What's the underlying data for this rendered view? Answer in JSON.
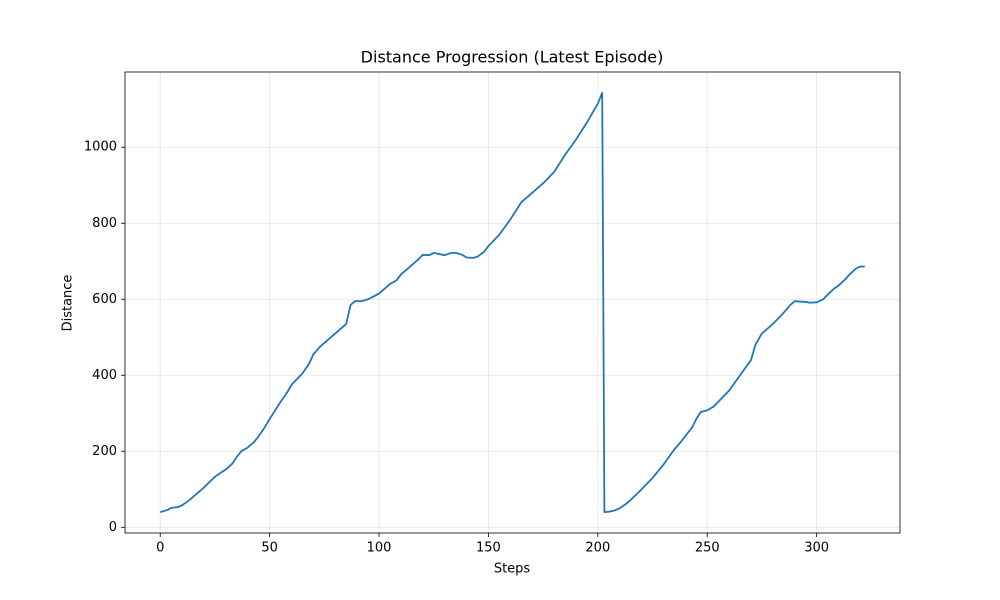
{
  "chart_data": {
    "type": "line",
    "title": "Distance Progression (Latest Episode)",
    "x_label": "Steps",
    "y_label": "Distance",
    "x": [
      0,
      3,
      5,
      8,
      10,
      13,
      15,
      20,
      25,
      28,
      30,
      33,
      35,
      37,
      40,
      43,
      45,
      48,
      50,
      55,
      58,
      60,
      65,
      68,
      70,
      73,
      75,
      80,
      85,
      87,
      89,
      92,
      95,
      100,
      105,
      108,
      110,
      115,
      118,
      120,
      123,
      125,
      130,
      133,
      135,
      138,
      140,
      143,
      145,
      148,
      150,
      155,
      160,
      165,
      170,
      175,
      180,
      185,
      190,
      195,
      198,
      200,
      202,
      203,
      205,
      208,
      210,
      213,
      215,
      220,
      225,
      230,
      235,
      238,
      240,
      243,
      245,
      247,
      250,
      253,
      255,
      260,
      265,
      270,
      272,
      275,
      280,
      285,
      288,
      290,
      295,
      297,
      300,
      303,
      305,
      308,
      310,
      313,
      315,
      318,
      320,
      322
    ],
    "values": [
      40,
      45,
      51,
      53,
      58,
      70,
      80,
      105,
      133,
      145,
      152,
      168,
      185,
      200,
      210,
      225,
      240,
      265,
      285,
      330,
      355,
      375,
      405,
      430,
      455,
      475,
      485,
      510,
      535,
      585,
      595,
      595,
      600,
      615,
      640,
      650,
      665,
      690,
      705,
      717,
      716,
      722,
      716,
      722,
      722,
      717,
      710,
      709,
      712,
      725,
      740,
      770,
      810,
      855,
      880,
      905,
      935,
      980,
      1020,
      1065,
      1095,
      1115,
      1143,
      40,
      41,
      45,
      50,
      62,
      72,
      100,
      130,
      165,
      205,
      225,
      240,
      262,
      285,
      303,
      308,
      318,
      330,
      360,
      400,
      440,
      480,
      510,
      535,
      565,
      585,
      595,
      593,
      591,
      592,
      600,
      612,
      628,
      636,
      652,
      665,
      681,
      686,
      686
    ],
    "color": "#1f77b4",
    "xlim": [
      -16.1,
      338.1
    ],
    "ylim": [
      -15,
      1198
    ],
    "xticks": [
      0,
      50,
      100,
      150,
      200,
      250,
      300
    ],
    "yticks": [
      0,
      200,
      400,
      600,
      800,
      1000
    ],
    "grid": true
  }
}
